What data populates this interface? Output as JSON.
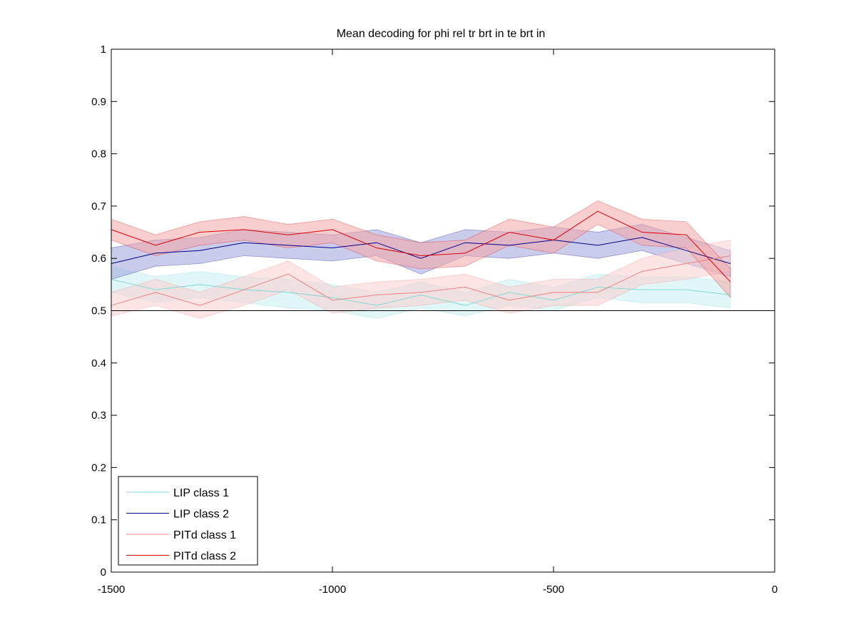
{
  "chart_data": {
    "type": "line",
    "title": "Mean decoding for phi rel tr brt in te brt in",
    "xlabel": "",
    "ylabel": "",
    "xlim": [
      -1500,
      0
    ],
    "ylim": [
      0,
      1
    ],
    "x_ticks": [
      -1500,
      -1000,
      -500,
      0
    ],
    "x_tick_labels": [
      "-1500",
      "-1000",
      "-500",
      "0"
    ],
    "y_ticks": [
      0,
      0.1,
      0.2,
      0.3,
      0.4,
      0.5,
      0.6,
      0.7,
      0.8,
      0.9,
      1
    ],
    "y_tick_labels": [
      "0",
      "0.1",
      "0.2",
      "0.3",
      "0.4",
      "0.5",
      "0.6",
      "0.7",
      "0.8",
      "0.9",
      "1"
    ],
    "grid": false,
    "legend_position": "bottom-left",
    "reference_line": 0.5,
    "x": [
      -1500,
      -1400,
      -1300,
      -1200,
      -1100,
      -1000,
      -900,
      -800,
      -700,
      -600,
      -500,
      -400,
      -300,
      -200,
      -100
    ],
    "series": [
      {
        "name": "LIP class 1",
        "color": "#7fd8d8",
        "band_color": "#c6eef0",
        "values": [
          0.56,
          0.54,
          0.55,
          0.54,
          0.535,
          0.525,
          0.51,
          0.53,
          0.51,
          0.535,
          0.52,
          0.545,
          0.54,
          0.54,
          0.53
        ],
        "lower": [
          0.535,
          0.515,
          0.525,
          0.515,
          0.505,
          0.5,
          0.485,
          0.505,
          0.49,
          0.51,
          0.5,
          0.525,
          0.515,
          0.515,
          0.505
        ],
        "upper": [
          0.585,
          0.565,
          0.575,
          0.565,
          0.56,
          0.55,
          0.535,
          0.555,
          0.535,
          0.56,
          0.545,
          0.57,
          0.565,
          0.565,
          0.555
        ]
      },
      {
        "name": "LIP class 2",
        "color": "#00008b",
        "band_color": "#9fa3dc",
        "values": [
          0.59,
          0.61,
          0.615,
          0.63,
          0.625,
          0.62,
          0.63,
          0.6,
          0.63,
          0.625,
          0.635,
          0.625,
          0.64,
          0.615,
          0.59
        ],
        "lower": [
          0.56,
          0.585,
          0.59,
          0.605,
          0.6,
          0.595,
          0.605,
          0.57,
          0.605,
          0.6,
          0.61,
          0.6,
          0.615,
          0.59,
          0.565
        ],
        "upper": [
          0.62,
          0.635,
          0.64,
          0.655,
          0.65,
          0.645,
          0.655,
          0.63,
          0.655,
          0.65,
          0.66,
          0.65,
          0.665,
          0.64,
          0.615
        ]
      },
      {
        "name": "PITd class 1",
        "color": "#f08080",
        "band_color": "#fbd0d0",
        "values": [
          0.51,
          0.535,
          0.51,
          0.54,
          0.57,
          0.52,
          0.53,
          0.535,
          0.545,
          0.52,
          0.535,
          0.535,
          0.575,
          0.59,
          0.605
        ],
        "lower": [
          0.49,
          0.51,
          0.485,
          0.51,
          0.54,
          0.495,
          0.505,
          0.51,
          0.52,
          0.495,
          0.51,
          0.51,
          0.55,
          0.56,
          0.575
        ],
        "upper": [
          0.535,
          0.56,
          0.535,
          0.565,
          0.595,
          0.545,
          0.555,
          0.56,
          0.57,
          0.545,
          0.56,
          0.56,
          0.6,
          0.62,
          0.635
        ]
      },
      {
        "name": "PITd class 2",
        "color": "#e00000",
        "band_color": "#f4a6a6",
        "values": [
          0.655,
          0.625,
          0.65,
          0.655,
          0.645,
          0.655,
          0.62,
          0.605,
          0.61,
          0.65,
          0.635,
          0.69,
          0.65,
          0.645,
          0.555
        ],
        "lower": [
          0.635,
          0.605,
          0.625,
          0.635,
          0.62,
          0.63,
          0.595,
          0.58,
          0.585,
          0.625,
          0.61,
          0.665,
          0.625,
          0.62,
          0.525
        ],
        "upper": [
          0.675,
          0.645,
          0.67,
          0.68,
          0.665,
          0.675,
          0.645,
          0.63,
          0.635,
          0.675,
          0.66,
          0.71,
          0.675,
          0.67,
          0.58
        ]
      }
    ]
  }
}
